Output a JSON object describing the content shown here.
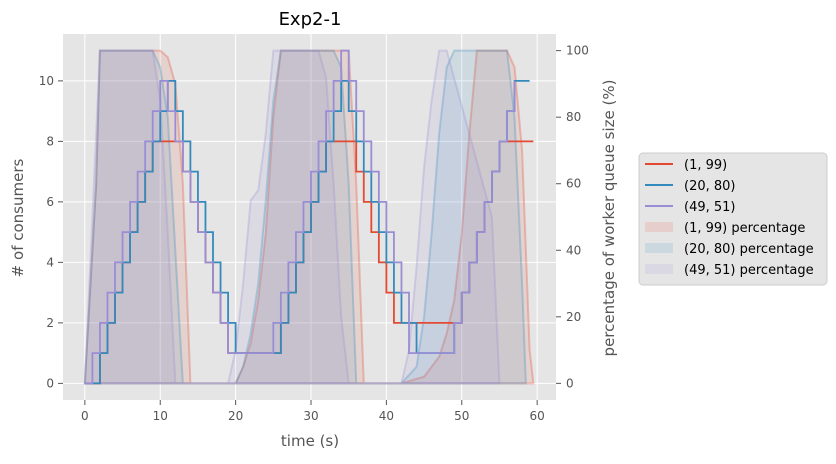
{
  "chart_data": {
    "type": "line",
    "title": "Exp2-1",
    "xlabel": "time (s)",
    "ylabel": "# of consumers",
    "y2label": "percentage of worker queue size (%)",
    "xlim": [
      -2.9,
      62.5
    ],
    "ylim": [
      -0.55,
      11.55
    ],
    "y2lim": [
      -5,
      105
    ],
    "xticks": [
      0,
      10,
      20,
      30,
      40,
      50,
      60
    ],
    "yticks": [
      0,
      2,
      4,
      6,
      8,
      10
    ],
    "y2ticks": [
      0,
      20,
      40,
      60,
      80,
      100
    ],
    "grid": true,
    "legend_position": "outside-right",
    "colors": {
      "background": "#e5e5e5",
      "grid": "#ffffff",
      "red": "#e24a33",
      "blue": "#348abd",
      "purple": "#988ed5",
      "tick_text": "#555555",
      "label_text": "#555555"
    },
    "series": [
      {
        "name": "(1, 99)",
        "kind": "step",
        "color": "#e24a33",
        "x": [
          0,
          2,
          3,
          4,
          5,
          6,
          7,
          8,
          9,
          10,
          13,
          14,
          15,
          16,
          17,
          18,
          19,
          20,
          21,
          26,
          27,
          28,
          29,
          30,
          31,
          32,
          33,
          36,
          37,
          38,
          39,
          40,
          41,
          42,
          43,
          44,
          50,
          51,
          52,
          53,
          54,
          55,
          56,
          57,
          59.5
        ],
        "y": [
          0,
          1,
          2,
          3,
          4,
          5,
          6,
          7,
          8,
          8,
          7,
          6,
          5,
          4,
          3,
          2,
          1,
          1,
          1,
          2,
          3,
          4,
          5,
          6,
          7,
          8,
          8,
          7,
          6,
          5,
          4,
          3,
          2,
          2,
          2,
          2,
          3,
          4,
          5,
          6,
          7,
          8,
          8,
          8,
          8
        ]
      },
      {
        "name": "(20, 80)",
        "kind": "step",
        "color": "#348abd",
        "x": [
          0,
          2,
          3,
          4,
          5,
          6,
          7,
          8,
          9,
          10,
          11,
          12,
          13,
          14,
          15,
          16,
          17,
          18,
          19,
          20,
          21,
          26,
          27,
          28,
          29,
          30,
          31,
          32,
          33,
          34,
          35,
          36,
          37,
          38,
          39,
          40,
          41,
          42,
          43,
          44,
          45,
          49,
          50,
          51,
          52,
          53,
          54,
          55,
          56,
          57,
          58,
          59
        ],
        "y": [
          0,
          1,
          2,
          3,
          4,
          5,
          6,
          7,
          8,
          9,
          10,
          9,
          8,
          7,
          6,
          5,
          4,
          3,
          2,
          1,
          1,
          2,
          3,
          4,
          5,
          6,
          7,
          8,
          9,
          10,
          9,
          8,
          7,
          6,
          5,
          4,
          3,
          2,
          2,
          1,
          1,
          2,
          3,
          4,
          5,
          6,
          7,
          8,
          9,
          10,
          10,
          10
        ]
      },
      {
        "name": "(49, 51)",
        "kind": "step",
        "color": "#988ed5",
        "x": [
          0,
          1,
          2,
          3,
          4,
          5,
          6,
          7,
          8,
          9,
          10,
          11,
          12,
          13,
          14,
          15,
          16,
          17,
          18,
          19,
          20,
          25,
          26,
          27,
          28,
          29,
          30,
          31,
          32,
          33,
          34,
          35,
          36,
          37,
          38,
          39,
          40,
          41,
          42,
          43,
          48,
          49,
          50,
          51,
          52,
          53,
          54,
          55,
          56,
          57
        ],
        "y": [
          0,
          1,
          2,
          3,
          4,
          5,
          6,
          7,
          8,
          9,
          10,
          9,
          8,
          7,
          6,
          5,
          4,
          3,
          2,
          1,
          1,
          2,
          3,
          4,
          5,
          6,
          7,
          8,
          9,
          10,
          11,
          10,
          9,
          8,
          7,
          6,
          5,
          4,
          3,
          1,
          1,
          2,
          3,
          4,
          5,
          6,
          7,
          8,
          9,
          10
        ]
      }
    ],
    "area_series": [
      {
        "name": "(1, 99) percentage",
        "axis": "y2",
        "color": "#e24a33",
        "x": [
          0,
          1.5,
          2,
          10,
          11,
          12,
          13,
          14,
          20,
          21,
          22,
          23,
          24,
          25,
          26,
          33,
          34,
          35,
          36,
          37,
          42,
          45,
          47,
          48,
          49,
          50,
          51,
          52,
          53,
          56,
          57,
          58,
          58.5,
          59,
          59.5
        ],
        "y": [
          0,
          60,
          100,
          100,
          98,
          90,
          60,
          0,
          0,
          5,
          12,
          25,
          45,
          80,
          100,
          100,
          100,
          100,
          60,
          0,
          0,
          2,
          8,
          15,
          25,
          45,
          75,
          100,
          100,
          100,
          95,
          70,
          40,
          10,
          0
        ]
      },
      {
        "name": "(20, 80) percentage",
        "axis": "y2",
        "color": "#348abd",
        "x": [
          0,
          1.5,
          2,
          9,
          10,
          11,
          12,
          13,
          20,
          21,
          22,
          23,
          24,
          25,
          26,
          32,
          33,
          34,
          35,
          36,
          42,
          44,
          45,
          46,
          47,
          48,
          49,
          55,
          56,
          57,
          58,
          58.5
        ],
        "y": [
          0,
          60,
          100,
          100,
          95,
          80,
          40,
          0,
          0,
          5,
          15,
          30,
          55,
          85,
          100,
          100,
          100,
          95,
          60,
          0,
          0,
          5,
          20,
          45,
          75,
          95,
          100,
          100,
          100,
          80,
          30,
          0
        ]
      },
      {
        "name": "(49, 51) percentage",
        "axis": "y2",
        "color": "#988ed5",
        "x": [
          0,
          1,
          2,
          9,
          10,
          11,
          12,
          19,
          20,
          21,
          22,
          23,
          24,
          25,
          31,
          32,
          33,
          34,
          35,
          42,
          43,
          44,
          45,
          46,
          47,
          48,
          54,
          55
        ],
        "y": [
          0,
          50,
          100,
          100,
          85,
          45,
          0,
          0,
          10,
          30,
          55,
          58,
          75,
          100,
          100,
          92,
          60,
          20,
          0,
          0,
          10,
          35,
          65,
          85,
          100,
          100,
          50,
          0
        ]
      }
    ]
  }
}
